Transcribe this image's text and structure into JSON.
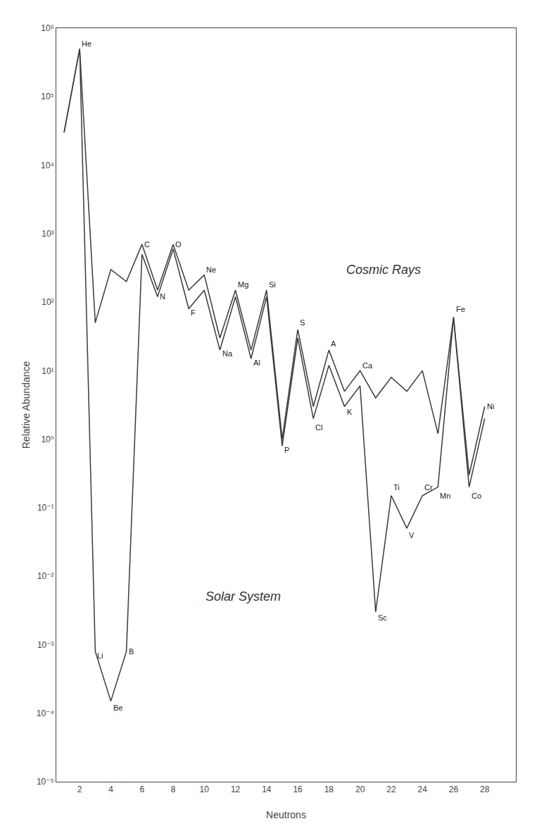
{
  "chart_data": {
    "type": "line",
    "xlabel": "Neutrons",
    "ylabel": "Relative Abundance",
    "log": "y",
    "grid": false,
    "xlim": [
      0.5,
      30
    ],
    "ylim": [
      1e-05,
      1000000.0
    ],
    "xticks": [
      2,
      4,
      6,
      8,
      10,
      12,
      14,
      16,
      18,
      20,
      22,
      24,
      26,
      28
    ],
    "yticks": [
      {
        "value": 1e-05,
        "label": "10⁻⁵"
      },
      {
        "value": 0.0001,
        "label": "10⁻⁴"
      },
      {
        "value": 0.001,
        "label": "10⁻³"
      },
      {
        "value": 0.01,
        "label": "10⁻²"
      },
      {
        "value": 0.1,
        "label": "10⁻¹"
      },
      {
        "value": 1,
        "label": "10⁰"
      },
      {
        "value": 10,
        "label": "10¹"
      },
      {
        "value": 100,
        "label": "10²"
      },
      {
        "value": 1000,
        "label": "10³"
      },
      {
        "value": 10000,
        "label": "10⁴"
      },
      {
        "value": 100000,
        "label": "10⁵"
      },
      {
        "value": 1000000,
        "label": "10⁶"
      }
    ],
    "x": [
      1,
      2,
      3,
      4,
      5,
      6,
      7,
      8,
      9,
      10,
      11,
      12,
      13,
      14,
      15,
      16,
      17,
      18,
      19,
      20,
      21,
      22,
      23,
      24,
      25,
      26,
      27,
      28
    ],
    "series": [
      {
        "color": "#3a3a3a",
        "values": [
          30000.0,
          500000.0,
          50.0,
          300.0,
          200.0,
          700.0,
          150.0,
          700.0,
          150.0,
          250.0,
          30.0,
          150.0,
          20.0,
          150.0,
          1.0,
          40.0,
          3.0,
          20.0,
          5.0,
          10.0,
          4.0,
          8.0,
          5.0,
          10.0,
          1.2,
          60.0,
          0.3,
          3.0
        ]
      },
      {
        "color": "#3a3a3a",
        "values": [
          30000.0,
          500000.0,
          0.0008,
          0.00015,
          0.0008,
          500.0,
          120.0,
          600.0,
          80.0,
          150.0,
          20.0,
          120.0,
          15.0,
          120.0,
          0.8,
          30.0,
          2.0,
          12.0,
          3.0,
          6.0,
          0.003,
          0.15,
          0.05,
          0.15,
          0.2,
          60.0,
          0.2,
          2.0
        ]
      }
    ],
    "annotations": [
      {
        "text": "He",
        "x": 2.05,
        "y": 600000.0
      },
      {
        "text": "Li",
        "x": 3.05,
        "y": 0.0007
      },
      {
        "text": "Be",
        "x": 4.05,
        "y": 0.00012
      },
      {
        "text": "B",
        "x": 5.05,
        "y": 0.0008
      },
      {
        "text": "C",
        "x": 6.05,
        "y": 700.0
      },
      {
        "text": "N",
        "x": 7.05,
        "y": 120.0
      },
      {
        "text": "O",
        "x": 8.05,
        "y": 700.0
      },
      {
        "text": "F",
        "x": 9.05,
        "y": 70.0
      },
      {
        "text": "Ne",
        "x": 10.05,
        "y": 300.0
      },
      {
        "text": "Na",
        "x": 11.05,
        "y": 18.0
      },
      {
        "text": "Mg",
        "x": 12.05,
        "y": 180.0
      },
      {
        "text": "Al",
        "x": 13.05,
        "y": 13.0
      },
      {
        "text": "Si",
        "x": 14.05,
        "y": 180.0
      },
      {
        "text": "P",
        "x": 15.05,
        "y": 0.7
      },
      {
        "text": "S",
        "x": 16.05,
        "y": 50.0
      },
      {
        "text": "Cl",
        "x": 17.05,
        "y": 1.5
      },
      {
        "text": "A",
        "x": 18.05,
        "y": 25.0
      },
      {
        "text": "K",
        "x": 19.05,
        "y": 2.5
      },
      {
        "text": "Ca",
        "x": 20.05,
        "y": 12.0
      },
      {
        "text": "Sc",
        "x": 21.05,
        "y": 0.0025
      },
      {
        "text": "Ti",
        "x": 22.05,
        "y": 0.2
      },
      {
        "text": "V",
        "x": 23.05,
        "y": 0.04
      },
      {
        "text": "Cr",
        "x": 24.05,
        "y": 0.2
      },
      {
        "text": "Mn",
        "x": 25.05,
        "y": 0.15
      },
      {
        "text": "Fe",
        "x": 26.05,
        "y": 80.0
      },
      {
        "text": "Co",
        "x": 27.05,
        "y": 0.15
      },
      {
        "text": "Ni",
        "x": 28.05,
        "y": 3.0
      },
      {
        "text": "Cosmic Rays",
        "x": 19,
        "y": 300.0
      },
      {
        "text": "Solar System",
        "x": 10,
        "y": 0.005
      }
    ]
  }
}
